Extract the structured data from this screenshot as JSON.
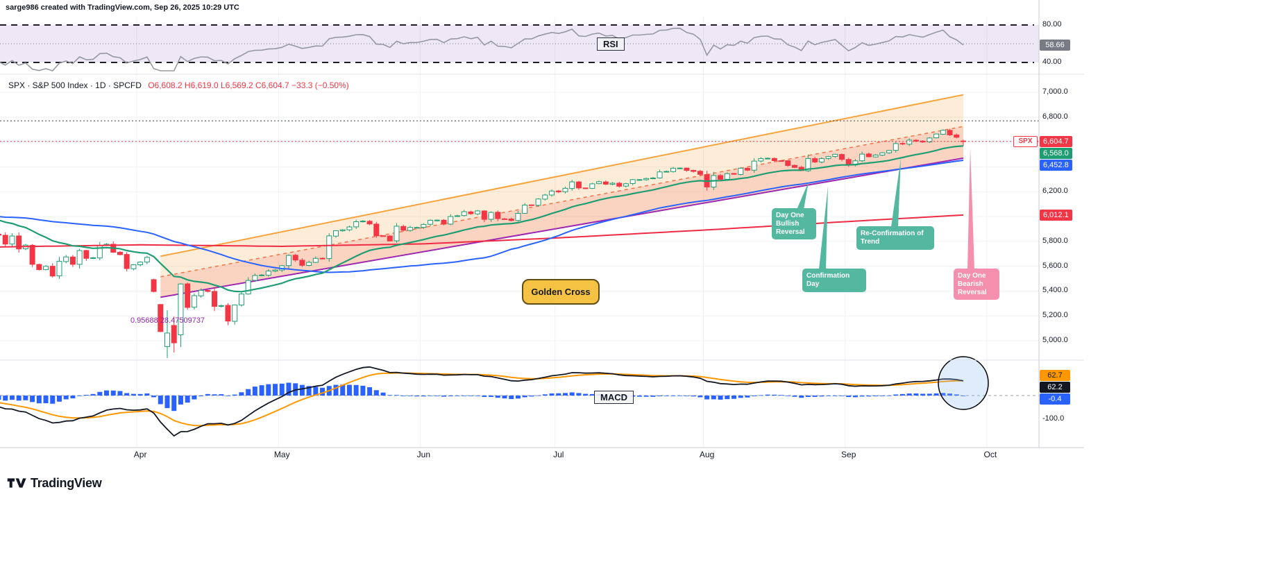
{
  "header": {
    "credit": "sarge986 created with TradingView.com, Sep 26, 2025 10:29 UTC"
  },
  "logo": {
    "brand": "TradingView"
  },
  "rsi_panel": {
    "label": "RSI",
    "value_badge": "58.66",
    "badge_color": "#787b86",
    "line_color": "#9598a1",
    "band_fill": "rgba(103,58,183,0.12)",
    "upper_band": 80,
    "lower_band": 40,
    "middle_line": 60,
    "axis_labels": [
      {
        "text": "80.00",
        "level": 80
      },
      {
        "text": "40.00",
        "level": 40
      }
    ]
  },
  "main_panel": {
    "legend_symbol": "SPX · S&P 500 Index · 1D · SPCFD",
    "legend_ohlc": "O6,608.2 H6,619.0 L6,569.2 C6,604.7 −33.3 (−0.50%)",
    "axis_labels": [
      {
        "text": "7,000.0",
        "price": 7000
      },
      {
        "text": "6,800.0",
        "price": 6800
      },
      {
        "text": "6,200.0",
        "price": 6200
      },
      {
        "text": "5,800.0",
        "price": 5800
      },
      {
        "text": "5,600.0",
        "price": 5600
      },
      {
        "text": "5,400.0",
        "price": 5400
      },
      {
        "text": "5,200.0",
        "price": 5200
      },
      {
        "text": "5,000.0",
        "price": 5000
      }
    ],
    "price_badges": [
      {
        "label": "SPX",
        "value": "6,604.7",
        "price": 6604.7,
        "color": "#f23645"
      },
      {
        "value": "6,568.0",
        "price": 6568.0,
        "color": "#1f9d72"
      },
      {
        "value": "6,452.8",
        "price": 6452.8,
        "color": "#2962ff"
      },
      {
        "value": "6,012.1",
        "price": 6012.1,
        "color": "#f23645"
      }
    ],
    "annotations": [
      {
        "text": "Day One Bullish Reversal",
        "color": "#54b8a0"
      },
      {
        "text": "Confirmation Day",
        "color": "#54b8a0"
      },
      {
        "text": "Re-Confirmation of Trend",
        "color": "#54b8a0"
      },
      {
        "text": "Day One Bearish Reversal",
        "color": "#f490ad"
      },
      {
        "text": "Golden Cross",
        "color": "#f6c244"
      }
    ],
    "trendline_label": "0.95688  28.47509737"
  },
  "macd_panel": {
    "label": "MACD",
    "badges": [
      {
        "value": "62.7",
        "color": "#ff9800",
        "text_color": "#131722"
      },
      {
        "value": "62.2",
        "color": "#131722",
        "text_color": "#ffffff"
      },
      {
        "value": "-0.4",
        "color": "#2962ff",
        "text_color": "#ffffff"
      }
    ],
    "axis_labels": [
      {
        "text": "-100.0",
        "level": -100
      }
    ]
  },
  "chart_data": [
    {
      "type": "line",
      "panel": "rsi",
      "name": "RSI",
      "period": 14,
      "derived_from": "candlestick close series below",
      "bands": {
        "upper": 80,
        "lower": 40,
        "middle": 60
      },
      "last_value": 58.66,
      "ylim": [
        20,
        100
      ],
      "legend_position": "center-top",
      "grid": false
    },
    {
      "type": "candlestick",
      "panel": "main",
      "symbol": "SPX",
      "description": "S&P 500 Index",
      "interval": "1D",
      "exchange": "SPCFD",
      "start_date": "2025-03-03",
      "last_bar": {
        "open": 6608.2,
        "high": 6619.0,
        "low": 6569.2,
        "close": 6604.7,
        "change": -33.3,
        "change_pct": -0.5
      },
      "months": [
        {
          "label": "Apr",
          "i": 21
        },
        {
          "label": "May",
          "i": 42
        },
        {
          "label": "Jun",
          "i": 63
        },
        {
          "label": "Jul",
          "i": 83
        },
        {
          "label": "Aug",
          "i": 105
        },
        {
          "label": "Sep",
          "i": 126
        },
        {
          "label": "Oct",
          "i": 147
        }
      ],
      "close": [
        5850,
        5778,
        5843,
        5739,
        5770,
        5615,
        5572,
        5599,
        5521,
        5639,
        5675,
        5615,
        5726,
        5663,
        5668,
        5768,
        5777,
        5712,
        5693,
        5581,
        5612,
        5633,
        5671,
        5396,
        5074,
        5062,
        4983,
        5457,
        5268,
        5363,
        5406,
        5397,
        5276,
        5283,
        5158,
        5288,
        5376,
        5485,
        5525,
        5529,
        5561,
        5569,
        5604,
        5687,
        5650,
        5607,
        5631,
        5663,
        5660,
        5844,
        5886,
        5893,
        5916,
        5958,
        5963,
        5940,
        5845,
        5842,
        5803,
        5922,
        5889,
        5912,
        5912,
        5936,
        5970,
        5971,
        5939,
        6000,
        6006,
        6039,
        6022,
        6045,
        5977,
        6033,
        5983,
        5981,
        5968,
        6025,
        6092,
        6092,
        6141,
        6173,
        6205,
        6198,
        6227,
        6279,
        6230,
        6226,
        6263,
        6280,
        6260,
        6268,
        6244,
        6264,
        6297,
        6297,
        6306,
        6310,
        6359,
        6363,
        6389,
        6390,
        6371,
        6363,
        6339,
        6238,
        6330,
        6299,
        6345,
        6340,
        6389,
        6373,
        6446,
        6466,
        6469,
        6450,
        6449,
        6411,
        6395,
        6370,
        6467,
        6439,
        6466,
        6482,
        6501,
        6460,
        6415,
        6448,
        6502,
        6481,
        6495,
        6513,
        6532,
        6587,
        6584,
        6615,
        6607,
        6600,
        6632,
        6664,
        6694,
        6657,
        6638,
        6605
      ],
      "warmup_closes": [
        6050,
        6051,
        5872,
        5867,
        5931,
        5930,
        5970,
        5975,
        5907,
        5869,
        5882,
        5906,
        5975,
        5909,
        5919,
        5937,
        5950,
        5996,
        6040,
        6049,
        6086,
        6118,
        6101,
        6084,
        6071,
        6040,
        6026,
        6038,
        6061,
        6068,
        6116,
        6114,
        6129,
        6144,
        6117,
        6115,
        6139,
        6118,
        6147,
        6144,
        6013,
        5983,
        5955,
        5862,
        5956,
        5861,
        5842,
        5954,
        5850,
        5954
      ],
      "ohlc_overrides": {
        "23": [
          5492,
          5499,
          5390,
          5396
        ],
        "24": [
          5292,
          5292,
          5069,
          5074
        ],
        "25": [
          4953,
          5246,
          4860,
          5062
        ],
        "26": [
          5123,
          5195,
          4905,
          4983
        ],
        "27": [
          5048,
          5462,
          4948,
          5457
        ],
        "143": [
          6608.2,
          6619.0,
          6569.2,
          6604.7
        ]
      },
      "ylim": [
        4838,
        7128
      ],
      "y_ticks": [
        7000,
        6800,
        6600,
        6400,
        6200,
        6000,
        5800,
        5600,
        5400,
        5200,
        5000
      ],
      "colors": {
        "up": "#1f9d72",
        "down": "#f23645"
      },
      "overlays": {
        "ema21": {
          "color": "#1f9d72",
          "last": 6568.0
        },
        "sma50": {
          "color": "#2962ff",
          "last": 6452.8
        },
        "sma200": {
          "color": "#ef2b44",
          "last": 6012.1,
          "points": [
            [
              0,
              5755
            ],
            [
              21,
              5772
            ],
            [
              42,
              5760
            ],
            [
              63,
              5780
            ],
            [
              83,
              5828
            ],
            [
              105,
              5892
            ],
            [
              126,
              5960
            ],
            [
              143,
              6012
            ]
          ]
        },
        "channel": {
          "start_i": 24,
          "end_i": 143,
          "top": [
            5680,
            6980
          ],
          "bottom": [
            5350,
            6470
          ],
          "median_dashed": true,
          "top_color": "#f7a33c",
          "bottom_color": "#9c27b0",
          "median_color": "#f0734a",
          "fill_upper": "rgba(247,166,60,0.20)",
          "fill_lower": "rgba(242,126,72,0.34)"
        },
        "hlines_dotted": [
          {
            "price": 6770,
            "color": "#434651"
          },
          {
            "price": 6604.7,
            "color": "#f23645"
          }
        ]
      }
    },
    {
      "type": "macd",
      "panel": "macd",
      "fast": 12,
      "slow": 26,
      "signal_period": 9,
      "derived_from": "candlestick close series above",
      "last": {
        "macd": 62.2,
        "signal": 62.7,
        "histogram": -0.4
      },
      "colors": {
        "macd": "#131722",
        "signal": "#ff9800",
        "histogram": "#2962ff"
      },
      "y_ticks": [
        -100
      ],
      "ylim": [
        -220,
        150
      ]
    }
  ]
}
